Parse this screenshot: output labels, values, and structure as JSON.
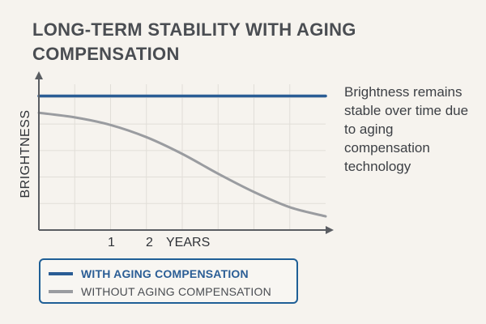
{
  "title": "LONG-TERM STABILITY WITH AGING COMPENSATION",
  "side_note": "Brightness remains stable over time due to aging compensation technology",
  "colors": {
    "with": "#2a5d95",
    "without": "#9a9ca0",
    "axis": "#5a5d62",
    "grid": "#e1ded8",
    "legend_border": "#1f5f96"
  },
  "chart_data": {
    "type": "line",
    "ylabel": "BRIGHTNESS",
    "xlabel": "YEARS",
    "xlim": [
      0,
      4
    ],
    "ylim": [
      0,
      100
    ],
    "x_ticks": [
      "1",
      "2"
    ],
    "grid": true,
    "legend_position": "bottom",
    "series": [
      {
        "name": "WITH AGING COMPENSATION",
        "x": [
          0,
          4
        ],
        "values": [
          88,
          88
        ]
      },
      {
        "name": "WITHOUT AGING COMPENSATION",
        "x": [
          0,
          0.5,
          1,
          1.5,
          2,
          2.5,
          3,
          3.5,
          4
        ],
        "values": [
          77,
          74,
          69,
          61,
          50,
          37,
          25,
          15,
          9
        ]
      }
    ]
  }
}
